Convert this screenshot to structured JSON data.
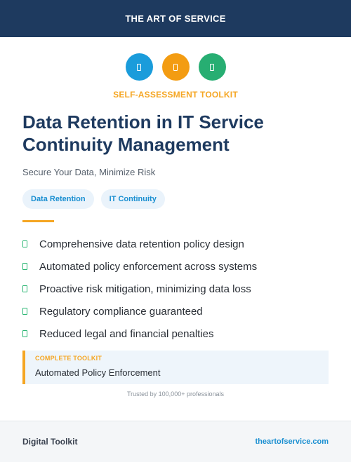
{
  "header": {
    "brand": "THE ART OF SERVICE"
  },
  "icons": [
    {
      "name": "blue-square-icon",
      "color": "#1a9cdb"
    },
    {
      "name": "orange-square-icon",
      "color": "#f39c12"
    },
    {
      "name": "green-square-icon",
      "color": "#27ae72"
    }
  ],
  "hero": {
    "kicker": "SELF-ASSESSMENT TOOLKIT",
    "title": "Data Retention in IT Service Continuity Management",
    "subtitle": "Secure Your Data, Minimize Risk"
  },
  "tags": [
    "Data Retention",
    "IT Continuity"
  ],
  "features": [
    "Comprehensive data retention policy design",
    "Automated policy enforcement across systems",
    "Proactive risk mitigation, minimizing data loss",
    "Regulatory compliance guaranteed",
    "Reduced legal and financial penalties"
  ],
  "callout": {
    "label": "COMPLETE TOOLKIT",
    "value": "Automated Policy Enforcement"
  },
  "trust_text": "Trusted by 100,000+ professionals",
  "footer": {
    "left": "Digital Toolkit",
    "right": "theartofservice.com"
  },
  "colors": {
    "navy": "#1e3a5f",
    "accent_orange": "#f5a623",
    "accent_blue": "#1a8fd1",
    "check_green": "#2bb673"
  }
}
